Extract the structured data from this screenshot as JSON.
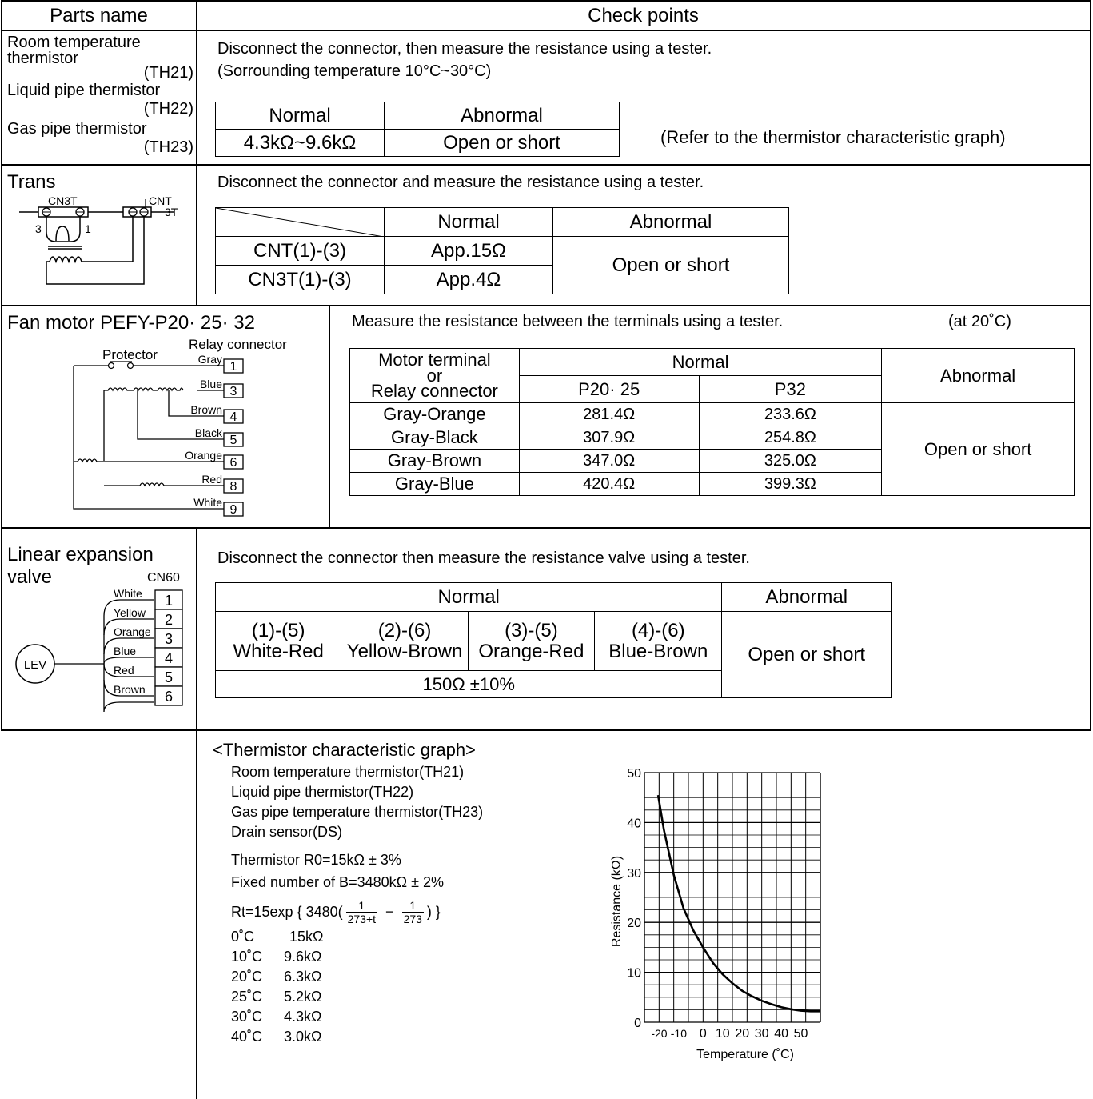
{
  "header": {
    "parts_name": "Parts name",
    "check_points": "Check points"
  },
  "thermistor_row": {
    "parts": {
      "room_line1": "Room temperature",
      "room_line2": "thermistor",
      "room_code": "(TH21)",
      "liquid": "Liquid pipe thermistor",
      "liquid_code": "(TH22)",
      "gas": "Gas pipe thermistor",
      "gas_code": "(TH23)"
    },
    "instruction_line1": "Disconnect the connector, then measure the resistance using a  tester.",
    "instruction_line2": "(Sorrounding temperature 10°C~30°C)",
    "table": {
      "normal_header": "Normal",
      "abnormal_header": "Abnormal",
      "normal_value": "4.3kΩ~9.6kΩ",
      "abnormal_value": "Open or short"
    },
    "note": "(Refer to the thermistor characteristic graph)"
  },
  "trans_row": {
    "parts_name": "Trans",
    "diagram": {
      "left_label": "CN3T",
      "right_label": "CNT",
      "pin3_left": "3",
      "pin1_left": "1",
      "pin3_right": "3T"
    },
    "instruction": "Disconnect the connector and measure the resistance using a tester.",
    "table": {
      "normal_header": "Normal",
      "abnormal_header": "Abnormal",
      "rows": [
        {
          "label": "CNT(1)-(3)",
          "value": "App.15Ω"
        },
        {
          "label": "CN3T(1)-(3)",
          "value": "App.4Ω"
        }
      ],
      "abnormal_value": "Open or short"
    }
  },
  "fan_row": {
    "parts_name": "Fan motor  PEFY-P20· 25· 32",
    "diagram": {
      "protector": "Protector",
      "relay_connector": "Relay connector",
      "pins": [
        {
          "color": "Gray",
          "num": "1"
        },
        {
          "color": "Blue",
          "num": "3"
        },
        {
          "color": "Brown",
          "num": "4"
        },
        {
          "color": "Black",
          "num": "5"
        },
        {
          "color": "Orange",
          "num": "6"
        },
        {
          "color": "Red",
          "num": "8"
        },
        {
          "color": "White",
          "num": "9"
        }
      ]
    },
    "instruction": "Measure the resistance between the terminals using a tester.",
    "temp_note": "(at 20˚C)",
    "table": {
      "terminal_header_1": "Motor terminal",
      "terminal_header_2": "or",
      "terminal_header_3": "Relay connector",
      "normal_header": "Normal",
      "model_a": "P20· 25",
      "model_b": "P32",
      "abnormal_header": "Abnormal",
      "rows": [
        {
          "terminal": "Gray-Orange",
          "a": "281.4Ω",
          "b": "233.6Ω"
        },
        {
          "terminal": "Gray-Black",
          "a": "307.9Ω",
          "b": "254.8Ω"
        },
        {
          "terminal": "Gray-Brown",
          "a": "347.0Ω",
          "b": "325.0Ω"
        },
        {
          "terminal": "Gray-Blue",
          "a": "420.4Ω",
          "b": "399.3Ω"
        }
      ],
      "abnormal_value": "Open or short"
    }
  },
  "lev_row": {
    "parts_line1": "Linear expansion",
    "parts_line2": "valve",
    "diagram": {
      "connector": "CN60",
      "lev": "LEV",
      "pins": [
        {
          "color": "White",
          "num": "1"
        },
        {
          "color": "Yellow",
          "num": "2"
        },
        {
          "color": "Orange",
          "num": "3"
        },
        {
          "color": "Blue",
          "num": "4"
        },
        {
          "color": "Red",
          "num": "5"
        },
        {
          "color": "Brown",
          "num": "6"
        }
      ]
    },
    "instruction": "Disconnect the connector then measure the resistance valve using a tester.",
    "table": {
      "normal_header": "Normal",
      "abnormal_header": "Abnormal",
      "cols": [
        {
          "pins": "(1)-(5)",
          "colors": "White-Red"
        },
        {
          "pins": "(2)-(6)",
          "colors": "Yellow-Brown"
        },
        {
          "pins": "(3)-(5)",
          "colors": "Orange-Red"
        },
        {
          "pins": "(4)-(6)",
          "colors": "Blue-Brown"
        }
      ],
      "value": "150Ω ±10%",
      "abnormal_value": "Open or short"
    }
  },
  "graph_row": {
    "title": "<Thermistor characteristic graph>",
    "sensors": [
      "Room temperature thermistor(TH21)",
      "Liquid pipe thermistor(TH22)",
      "Gas pipe temperature thermistor(TH23)",
      "Drain sensor(DS)"
    ],
    "spec_r0": "Thermistor R0=15kΩ ± 3%",
    "spec_b": "Fixed number of B=3480kΩ ± 2%",
    "formula_prefix": "Rt=15exp { 3480(",
    "formula_frac1_num": "1",
    "formula_frac1_den": "273+t",
    "formula_minus": "−",
    "formula_frac2_num": "1",
    "formula_frac2_den": "273",
    "formula_suffix": ") }",
    "values": [
      {
        "temp": "0˚C",
        "res": "15kΩ"
      },
      {
        "temp": "10˚C",
        "res": "9.6kΩ"
      },
      {
        "temp": "20˚C",
        "res": "6.3kΩ"
      },
      {
        "temp": "25˚C",
        "res": "5.2kΩ"
      },
      {
        "temp": "30˚C",
        "res": "4.3kΩ"
      },
      {
        "temp": "40˚C",
        "res": "3.0kΩ"
      }
    ]
  },
  "chart_data": {
    "type": "line",
    "title": "",
    "xlabel": "Temperature (˚C)",
    "ylabel": "Resistance (kΩ)",
    "xlim": [
      -30,
      60
    ],
    "ylim": [
      0,
      50
    ],
    "x_ticks": [
      "-20",
      "-10",
      "0",
      "10",
      "20",
      "30",
      "40",
      "50"
    ],
    "x_tick_values": [
      -20,
      -10,
      0,
      10,
      20,
      30,
      40,
      50
    ],
    "y_ticks": [
      "0",
      "10",
      "20",
      "30",
      "40",
      "50"
    ],
    "y_tick_values": [
      0,
      10,
      20,
      30,
      40,
      50
    ],
    "grid": true,
    "series": [
      {
        "x": [
          -23,
          -20,
          -15,
          -10,
          -5,
          0,
          5,
          10,
          15,
          20,
          25,
          30,
          35,
          40,
          45,
          50,
          55,
          60
        ],
        "y": [
          45.5,
          38.5,
          29.5,
          22.8,
          18.4,
          15.0,
          11.9,
          9.6,
          7.8,
          6.3,
          5.2,
          4.3,
          3.6,
          3.0,
          2.6,
          2.3,
          2.2,
          2.2
        ]
      }
    ]
  }
}
